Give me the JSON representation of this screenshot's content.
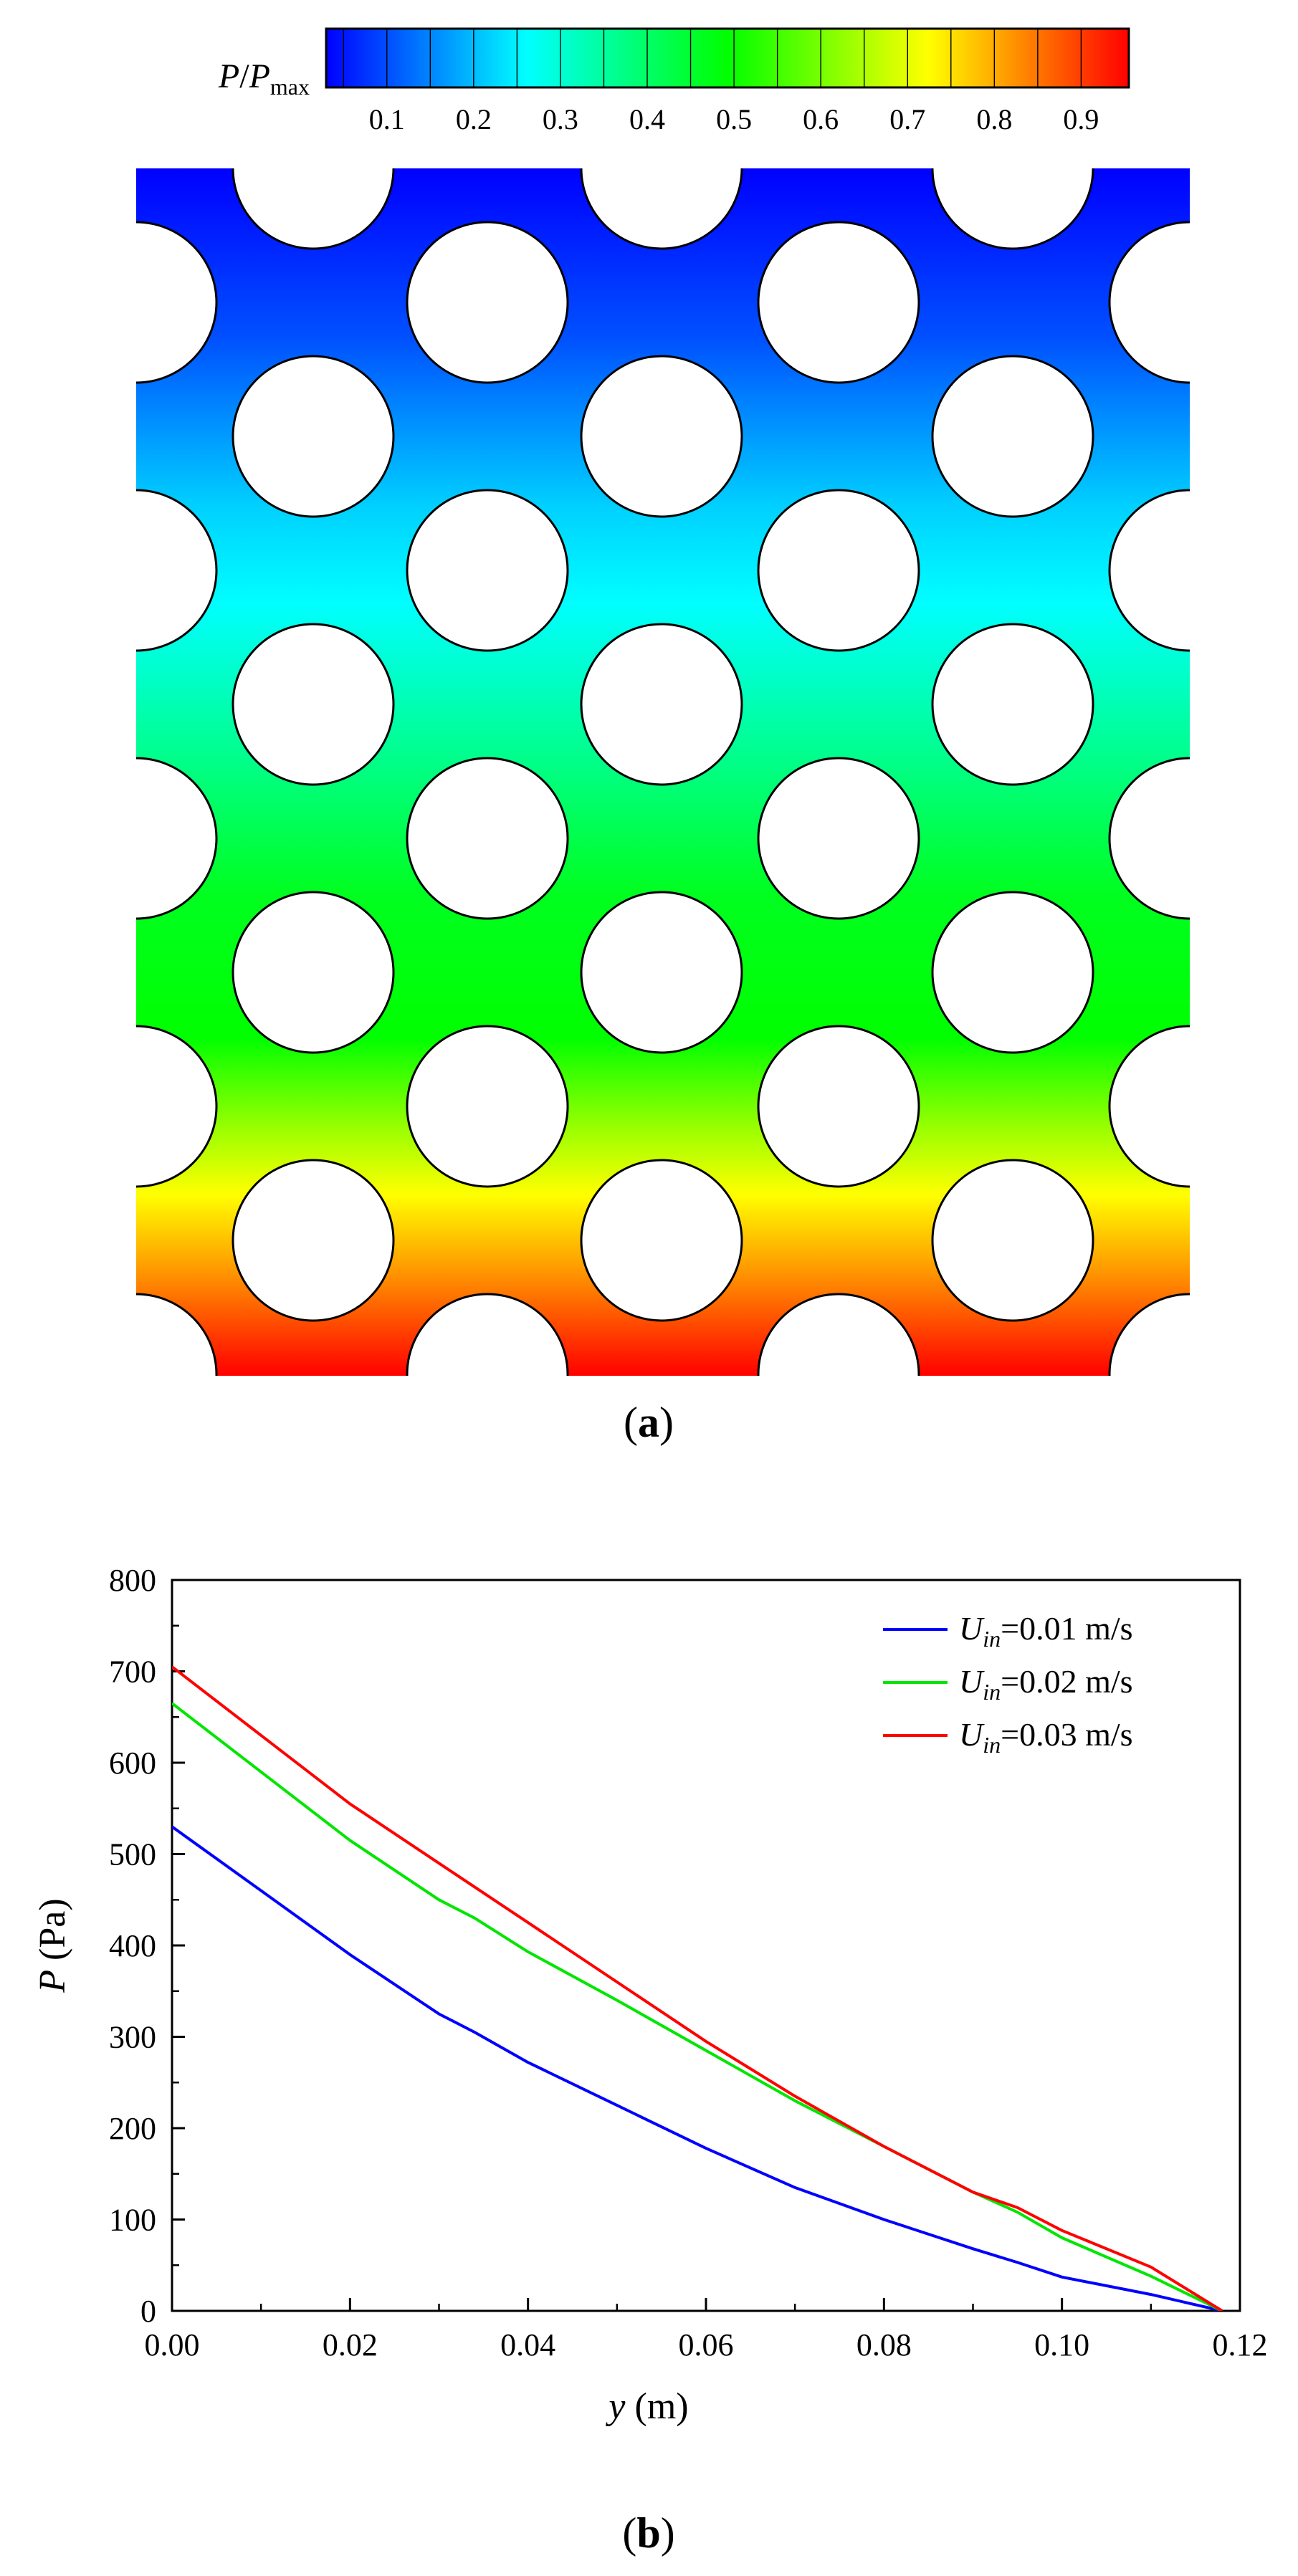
{
  "figure": {
    "panel_a_label": "a",
    "panel_b_label": "b"
  },
  "colorbar": {
    "label_main": "P",
    "label_slash": "/",
    "label_sub_base": "P",
    "label_subscript": "max",
    "ticks": [
      "0.1",
      "0.2",
      "0.3",
      "0.4",
      "0.5",
      "0.6",
      "0.7",
      "0.8",
      "0.9"
    ],
    "colors": [
      "#0000ff",
      "#0080ff",
      "#00ffff",
      "#00ff80",
      "#00ff00",
      "#80ff00",
      "#ffff00",
      "#ff8000",
      "#ff0000"
    ]
  },
  "contour": {
    "description_colors": {
      "top": "#0000ff",
      "bottom": "#ff0000"
    }
  },
  "chart_data": {
    "type": "line",
    "xlabel_var": "y",
    "xlabel_unit": " (m)",
    "ylabel_var": "P",
    "ylabel_unit": " (Pa)",
    "xlim": [
      0,
      0.12
    ],
    "ylim": [
      0,
      800
    ],
    "xticks": [
      "0.00",
      "0.02",
      "0.04",
      "0.06",
      "0.08",
      "0.10",
      "0.12"
    ],
    "yticks": [
      "0",
      "100",
      "200",
      "300",
      "400",
      "500",
      "600",
      "700",
      "800"
    ],
    "legend_position": "top-right",
    "series": [
      {
        "name_var": "U",
        "name_sub": "in",
        "name_rest": "=0.01 m/s",
        "color": "#0000ff",
        "x": [
          0,
          0.01,
          0.02,
          0.03,
          0.034,
          0.04,
          0.05,
          0.06,
          0.07,
          0.08,
          0.09,
          0.095,
          0.1,
          0.11,
          0.118
        ],
        "y": [
          530,
          460,
          390,
          325,
          305,
          272,
          225,
          178,
          135,
          100,
          68,
          53,
          37,
          18,
          0
        ]
      },
      {
        "name_var": "U",
        "name_sub": "in",
        "name_rest": "=0.02 m/s",
        "color": "#00e600",
        "x": [
          0,
          0.01,
          0.02,
          0.03,
          0.034,
          0.04,
          0.05,
          0.06,
          0.07,
          0.08,
          0.09,
          0.095,
          0.1,
          0.11,
          0.118
        ],
        "y": [
          665,
          590,
          515,
          450,
          430,
          393,
          340,
          285,
          230,
          180,
          130,
          108,
          80,
          38,
          0
        ]
      },
      {
        "name_var": "U",
        "name_sub": "in",
        "name_rest": "=0.03 m/s",
        "color": "#ff0000",
        "x": [
          0,
          0.01,
          0.02,
          0.03,
          0.04,
          0.05,
          0.06,
          0.07,
          0.08,
          0.09,
          0.095,
          0.1,
          0.11,
          0.118
        ],
        "y": [
          705,
          630,
          555,
          490,
          425,
          360,
          295,
          235,
          180,
          130,
          113,
          88,
          48,
          0
        ]
      }
    ]
  }
}
